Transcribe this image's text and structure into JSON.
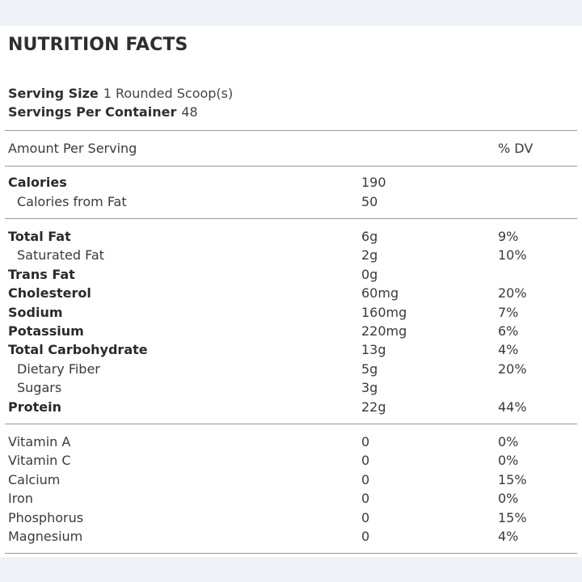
{
  "title": "NUTRITION FACTS",
  "serving": {
    "size_label": "Serving Size",
    "size_value": "1 Rounded Scoop(s)",
    "per_container_label": "Servings Per Container",
    "per_container_value": "48"
  },
  "header": {
    "amount_label": "Amount Per Serving",
    "dv_label": "% DV"
  },
  "calories": [
    {
      "name": "Calories",
      "amount": "190",
      "dv": "",
      "bold": true,
      "sub": false
    },
    {
      "name": "Calories from Fat",
      "amount": "50",
      "dv": "",
      "bold": false,
      "sub": true
    }
  ],
  "nutrients": [
    {
      "name": "Total Fat",
      "amount": "6g",
      "dv": "9%",
      "bold": true,
      "sub": false
    },
    {
      "name": "Saturated Fat",
      "amount": "2g",
      "dv": "10%",
      "bold": false,
      "sub": true
    },
    {
      "name": "Trans Fat",
      "amount": "0g",
      "dv": "",
      "bold": true,
      "sub": false
    },
    {
      "name": "Cholesterol",
      "amount": "60mg",
      "dv": "20%",
      "bold": true,
      "sub": false
    },
    {
      "name": "Sodium",
      "amount": "160mg",
      "dv": "7%",
      "bold": true,
      "sub": false
    },
    {
      "name": "Potassium",
      "amount": "220mg",
      "dv": "6%",
      "bold": true,
      "sub": false
    },
    {
      "name": "Total Carbohydrate",
      "amount": "13g",
      "dv": "4%",
      "bold": true,
      "sub": false
    },
    {
      "name": "Dietary Fiber",
      "amount": "5g",
      "dv": "20%",
      "bold": false,
      "sub": true
    },
    {
      "name": "Sugars",
      "amount": "3g",
      "dv": "",
      "bold": false,
      "sub": true
    },
    {
      "name": "Protein",
      "amount": "22g",
      "dv": "44%",
      "bold": true,
      "sub": false
    }
  ],
  "vitamins": [
    {
      "name": "Vitamin A",
      "amount": "0",
      "dv": "0%"
    },
    {
      "name": "Vitamin C",
      "amount": "0",
      "dv": "0%"
    },
    {
      "name": "Calcium",
      "amount": "0",
      "dv": "15%"
    },
    {
      "name": "Iron",
      "amount": "0",
      "dv": "0%"
    },
    {
      "name": "Phosphorus",
      "amount": "0",
      "dv": "15%"
    },
    {
      "name": "Magnesium",
      "amount": "0",
      "dv": "4%"
    }
  ]
}
